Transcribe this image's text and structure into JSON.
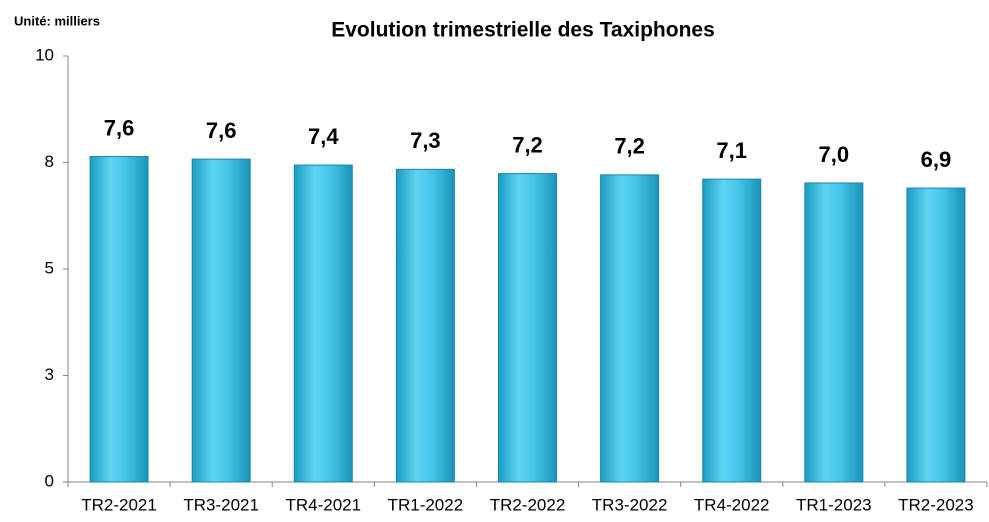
{
  "chart_data": {
    "type": "bar",
    "title": "Evolution trimestrielle des Taxiphones",
    "unit_label": "Unité: milliers",
    "categories": [
      "TR2-2021",
      "TR3-2021",
      "TR4-2021",
      "TR1-2022",
      "TR2-2022",
      "TR3-2022",
      "TR4-2022",
      "TR1-2023",
      "TR2-2023"
    ],
    "values": [
      7.64,
      7.58,
      7.44,
      7.34,
      7.24,
      7.21,
      7.11,
      7.02,
      6.9
    ],
    "value_labels": [
      "7,6",
      "7,6",
      "7,4",
      "7,3",
      "7,2",
      "7,2",
      "7,1",
      "7,0",
      "6,9"
    ],
    "color": "#3ec1e6",
    "ylim": [
      0,
      10
    ],
    "yticks": [
      0,
      {
        "value": 2.5,
        "label": "3"
      },
      5,
      {
        "value": 7.5,
        "label": "8"
      },
      10
    ],
    "grid": false
  }
}
